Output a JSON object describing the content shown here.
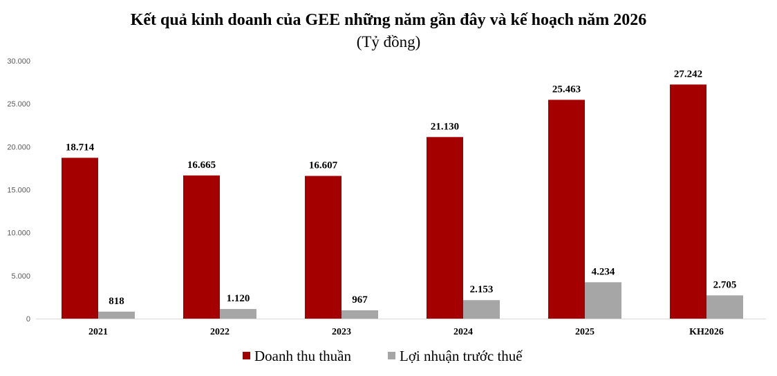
{
  "chart_data": {
    "type": "bar",
    "title": "Kết quả kinh doanh của GEE những năm gần đây và kế hoạch năm 2026",
    "subtitle": "(Tỷ đồng)",
    "categories": [
      "2021",
      "2022",
      "2023",
      "2024",
      "2025",
      "KH2026"
    ],
    "series": [
      {
        "name": "Doanh thu thuần",
        "color": "#a50000",
        "values": [
          18714,
          16665,
          16607,
          21130,
          25463,
          27242
        ],
        "labels": [
          "18.714",
          "16.665",
          "16.607",
          "21.130",
          "25.463",
          "27.242"
        ]
      },
      {
        "name": "Lợi nhuận trước thuế",
        "color": "#a6a6a6",
        "values": [
          818,
          1120,
          967,
          2153,
          4234,
          2705
        ],
        "labels": [
          "818",
          "1.120",
          "967",
          "2.153",
          "4.234",
          "2.705"
        ]
      }
    ],
    "ylim": [
      0,
      30000
    ],
    "yticks": [
      0,
      5000,
      10000,
      15000,
      20000,
      25000,
      30000
    ],
    "ytick_labels": [
      "0",
      "5.000",
      "10.000",
      "15.000",
      "20.000",
      "25.000",
      "30.000"
    ],
    "grid": false,
    "legend_position": "bottom-center"
  }
}
